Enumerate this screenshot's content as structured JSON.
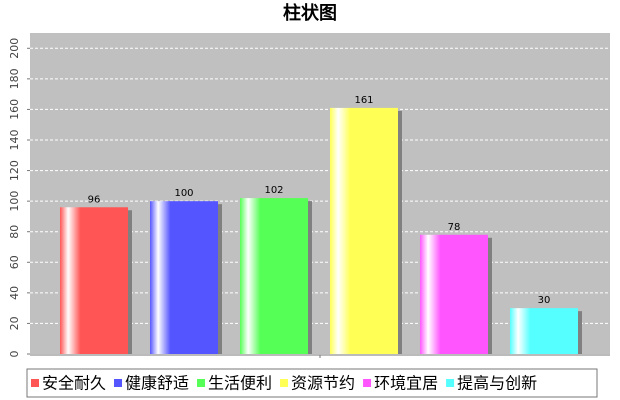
{
  "chart_data": {
    "type": "bar",
    "title": "柱状图",
    "categories": [
      null
    ],
    "series": [
      {
        "name": "安全耐久",
        "color": "#ff5555",
        "values": [
          96
        ]
      },
      {
        "name": "健康舒适",
        "color": "#5555ff",
        "values": [
          100
        ]
      },
      {
        "name": "生活便利",
        "color": "#55ff55",
        "values": [
          102
        ]
      },
      {
        "name": "资源节约",
        "color": "#ffff55",
        "values": [
          161
        ]
      },
      {
        "name": "环境宜居",
        "color": "#ff55ff",
        "values": [
          78
        ]
      },
      {
        "name": "提高与创新",
        "color": "#55ffff",
        "values": [
          30
        ]
      }
    ],
    "ylim": [
      0,
      210
    ],
    "yticks": [
      0,
      20,
      40,
      60,
      80,
      100,
      120,
      140,
      160,
      180,
      200
    ],
    "grid": true
  }
}
